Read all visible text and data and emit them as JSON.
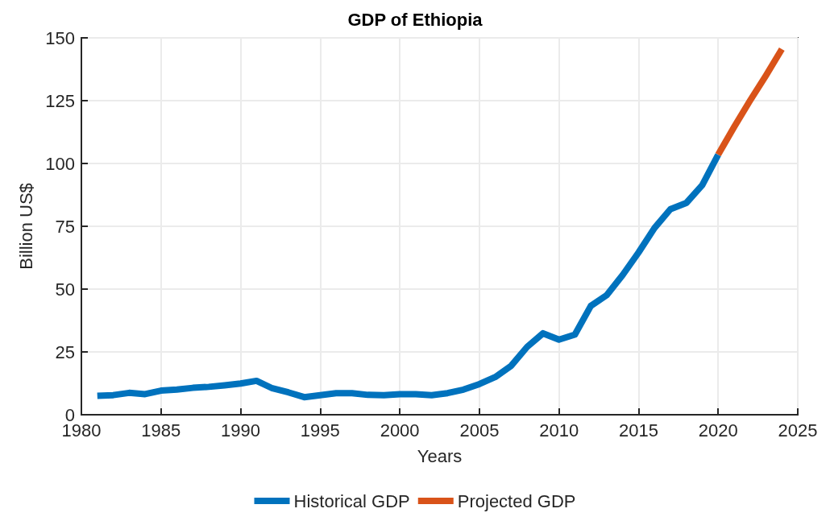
{
  "chart_data": {
    "type": "line",
    "title": "GDP of Ethiopia",
    "xlabel": "Years",
    "ylabel": "Billion US$",
    "series": [
      {
        "name": "Historical GDP",
        "color": "#0072bd",
        "x": [
          1981,
          1982,
          1983,
          1984,
          1985,
          1986,
          1987,
          1988,
          1989,
          1990,
          1991,
          1992,
          1993,
          1994,
          1995,
          1996,
          1997,
          1998,
          1999,
          2000,
          2001,
          2002,
          2003,
          2004,
          2005,
          2006,
          2007,
          2008,
          2009,
          2010,
          2011,
          2012,
          2013,
          2014,
          2015,
          2016,
          2017,
          2018,
          2019,
          2020
        ],
        "values": [
          7.5,
          7.8,
          8.7,
          8.2,
          9.6,
          10,
          10.7,
          11.1,
          11.7,
          12.4,
          13.5,
          10.5,
          8.9,
          7,
          7.8,
          8.6,
          8.6,
          7.9,
          7.8,
          8.2,
          8.2,
          7.8,
          8.6,
          10,
          12.2,
          15,
          19.5,
          27,
          32.4,
          29.9,
          31.9,
          43.3,
          47.6,
          55.6,
          64.6,
          74.3,
          81.8,
          84.3,
          91.4,
          103.5
        ]
      },
      {
        "name": "Projected GDP",
        "color": "#d95319",
        "x": [
          2020,
          2021,
          2022,
          2023,
          2024
        ],
        "values": [
          103.5,
          114.5,
          125,
          135,
          145.5
        ]
      }
    ],
    "xlim": [
      1980,
      2025
    ],
    "xticks": [
      1980,
      1985,
      1990,
      1995,
      2000,
      2005,
      2010,
      2015,
      2020,
      2025
    ],
    "ylim": [
      0,
      150
    ],
    "yticks": [
      0,
      25,
      50,
      75,
      100,
      125,
      150
    ],
    "grid": true,
    "legend": "bottom",
    "line_style": "solid",
    "marker": "none"
  }
}
